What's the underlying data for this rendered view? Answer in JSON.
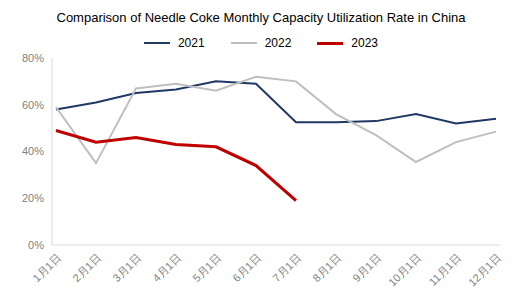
{
  "chart_data": {
    "type": "line",
    "title": "Comparison of Needle Coke Monthly Capacity Utilization Rate in China",
    "categories": [
      "1月1日",
      "2月1日",
      "3月1日",
      "4月1日",
      "5月1日",
      "6月1日",
      "7月1日",
      "8月1日",
      "9月1日",
      "10月1日",
      "11月1日",
      "12月1日"
    ],
    "series": [
      {
        "name": "2021",
        "color": "#203864",
        "values": [
          58,
          61,
          65,
          66.5,
          70,
          69,
          52.5,
          52.5,
          53,
          56,
          52,
          54
        ]
      },
      {
        "name": "2022",
        "color": "#bfbfbf",
        "values": [
          59,
          35,
          67,
          69,
          66,
          72,
          70,
          56,
          47,
          35.5,
          44,
          48.5
        ]
      },
      {
        "name": "2023",
        "color": "#c00000",
        "values": [
          49,
          44,
          46,
          43,
          42,
          34,
          19,
          null,
          null,
          null,
          null,
          null
        ]
      }
    ],
    "ylim": [
      0,
      80
    ],
    "yticks": [
      {
        "value": 0,
        "label": "0%"
      },
      {
        "value": 20,
        "label": "20%"
      },
      {
        "value": 40,
        "label": "40%"
      },
      {
        "value": 60,
        "label": "60%"
      },
      {
        "value": 80,
        "label": "80%"
      }
    ],
    "grid": false,
    "legend": "top"
  }
}
